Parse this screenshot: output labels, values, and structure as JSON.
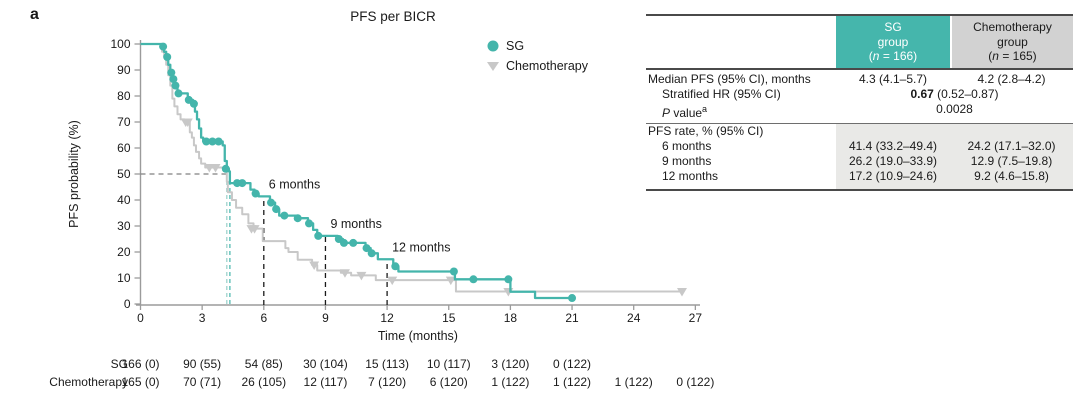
{
  "chart_data": {
    "type": "line",
    "subtype": "kaplan-meier-step",
    "panel": "a",
    "title": "PFS per BICR",
    "xlabel": "Time (months)",
    "ylabel": "PFS probability (%)",
    "xlim": [
      0,
      27
    ],
    "xticks": [
      0,
      3,
      6,
      9,
      12,
      15,
      18,
      21,
      24,
      27
    ],
    "ylim": [
      0,
      100
    ],
    "yticks": [
      0,
      10,
      20,
      30,
      40,
      50,
      60,
      70,
      80,
      90,
      100
    ],
    "grid": false,
    "legend_position": "upper-right-inside",
    "legend": [
      {
        "name": "SG",
        "marker": "circle",
        "color": "#44b5ab"
      },
      {
        "name": "Chemotherapy",
        "marker": "triangle-down",
        "color": "#c8c8c8"
      }
    ],
    "series": [
      {
        "name": "SG",
        "color": "#44b5ab",
        "start": [
          0,
          100
        ],
        "end_month": 21.0,
        "steps": [
          [
            1.05,
            99
          ],
          [
            1.15,
            97
          ],
          [
            1.25,
            95
          ],
          [
            1.35,
            92
          ],
          [
            1.45,
            89
          ],
          [
            1.55,
            86.5
          ],
          [
            1.65,
            84
          ],
          [
            1.8,
            81
          ],
          [
            2.3,
            78.5
          ],
          [
            2.55,
            77
          ],
          [
            2.65,
            74
          ],
          [
            2.75,
            71
          ],
          [
            2.85,
            67.5
          ],
          [
            2.95,
            64
          ],
          [
            3.05,
            62.5
          ],
          [
            4.0,
            61
          ],
          [
            4.1,
            55
          ],
          [
            4.2,
            52
          ],
          [
            4.3,
            51
          ],
          [
            4.35,
            46.5
          ],
          [
            5.35,
            44
          ],
          [
            5.55,
            42.5
          ],
          [
            5.75,
            41.4
          ],
          [
            6.3,
            39
          ],
          [
            6.55,
            36.5
          ],
          [
            6.75,
            34
          ],
          [
            7.6,
            33
          ],
          [
            8.15,
            31
          ],
          [
            8.4,
            28.5
          ],
          [
            8.6,
            26.2
          ],
          [
            9.6,
            25
          ],
          [
            9.85,
            23.5
          ],
          [
            10.95,
            21.5
          ],
          [
            11.2,
            19.5
          ],
          [
            11.55,
            17.2
          ],
          [
            12.3,
            14.5
          ],
          [
            12.55,
            12.5
          ],
          [
            15.3,
            9.5
          ],
          [
            18.0,
            4.7
          ],
          [
            19.2,
            2.3
          ]
        ],
        "censor_marks": [
          [
            1.1,
            99
          ],
          [
            1.3,
            95
          ],
          [
            1.5,
            89
          ],
          [
            1.6,
            86.5
          ],
          [
            1.7,
            84
          ],
          [
            1.85,
            81
          ],
          [
            2.35,
            78.5
          ],
          [
            2.6,
            77
          ],
          [
            3.2,
            62.5
          ],
          [
            3.5,
            62.5
          ],
          [
            3.8,
            62.5
          ],
          [
            4.15,
            52
          ],
          [
            4.7,
            46.5
          ],
          [
            4.95,
            46.5
          ],
          [
            5.6,
            42.5
          ],
          [
            6.35,
            39
          ],
          [
            6.6,
            36.5
          ],
          [
            7.0,
            34
          ],
          [
            7.65,
            33
          ],
          [
            8.2,
            31
          ],
          [
            8.65,
            26.2
          ],
          [
            9.65,
            25
          ],
          [
            9.9,
            23.5
          ],
          [
            10.35,
            23.5
          ],
          [
            11.0,
            21.5
          ],
          [
            11.25,
            19.5
          ],
          [
            12.4,
            14.5
          ],
          [
            15.25,
            12.5
          ],
          [
            16.2,
            9.5
          ],
          [
            17.9,
            9.5
          ],
          [
            21.0,
            2.3
          ]
        ]
      },
      {
        "name": "Chemotherapy",
        "color": "#c8c8c8",
        "start": [
          0,
          100
        ],
        "end_month": 26.35,
        "steps": [
          [
            1.05,
            97
          ],
          [
            1.15,
            95
          ],
          [
            1.25,
            92
          ],
          [
            1.35,
            88
          ],
          [
            1.45,
            84
          ],
          [
            1.55,
            79
          ],
          [
            1.65,
            76
          ],
          [
            1.8,
            73
          ],
          [
            1.95,
            71
          ],
          [
            2.15,
            70
          ],
          [
            2.4,
            66
          ],
          [
            2.5,
            64
          ],
          [
            2.6,
            61
          ],
          [
            2.7,
            58.5
          ],
          [
            2.85,
            56
          ],
          [
            2.95,
            54
          ],
          [
            3.15,
            52.5
          ],
          [
            4.2,
            47
          ],
          [
            4.25,
            43
          ],
          [
            4.45,
            40
          ],
          [
            4.65,
            37
          ],
          [
            4.95,
            34.5
          ],
          [
            5.25,
            31
          ],
          [
            5.5,
            29
          ],
          [
            5.95,
            24.2
          ],
          [
            7.05,
            21.5
          ],
          [
            7.2,
            20
          ],
          [
            7.65,
            17
          ],
          [
            8.35,
            15
          ],
          [
            8.6,
            12.9
          ],
          [
            9.75,
            12
          ],
          [
            10.25,
            11
          ],
          [
            11.45,
            9.2
          ],
          [
            15.35,
            4.8
          ]
        ],
        "censor_marks": [
          [
            2.2,
            70
          ],
          [
            2.3,
            70
          ],
          [
            3.35,
            52.5
          ],
          [
            3.65,
            52.5
          ],
          [
            5.4,
            29
          ],
          [
            5.55,
            29
          ],
          [
            8.45,
            15
          ],
          [
            9.95,
            12
          ],
          [
            10.75,
            11
          ],
          [
            12.25,
            9.2
          ],
          [
            15.1,
            9.2
          ],
          [
            17.9,
            4.8
          ],
          [
            26.35,
            4.8
          ]
        ]
      }
    ],
    "reference_lines": {
      "h50_pct": 50,
      "sg_median_month": 4.35,
      "chemo_median_month": 4.2,
      "month_markers": [
        {
          "month": 6,
          "top_pct": 41.4,
          "label": "6 months"
        },
        {
          "month": 9,
          "top_pct": 26.2,
          "label": "9 months"
        },
        {
          "month": 12,
          "top_pct": 17.2,
          "label": "12 months"
        }
      ]
    },
    "risk_table": {
      "rows": [
        {
          "label": "SG",
          "values": [
            "166 (0)",
            "90 (55)",
            "54 (85)",
            "30 (104)",
            "15 (113)",
            "10 (117)",
            "3 (120)",
            "0 (122)"
          ]
        },
        {
          "label": "Chemotherapy",
          "values": [
            "165 (0)",
            "70 (71)",
            "26 (105)",
            "12 (117)",
            "7 (120)",
            "6 (120)",
            "1 (122)",
            "1 (122)",
            "1 (122)",
            "0 (122)"
          ]
        }
      ]
    }
  },
  "stats": {
    "header": {
      "sg": {
        "l1": "SG",
        "l2": "group",
        "n_open": "(",
        "n": "n",
        "n_close": " = 166)"
      },
      "chemo": {
        "l1": "Chemotherapy",
        "l2": "group",
        "n_open": "(",
        "n": "n",
        "n_close": " = 165)"
      }
    },
    "median": {
      "label": "Median PFS (95% CI), months",
      "sg": "4.3 (4.1–5.7)",
      "chemo": "4.2 (2.8–4.2)"
    },
    "hr": {
      "label": "Stratified HR (95% CI)",
      "bold": "0.67",
      "rest": " (0.52–0.87)"
    },
    "pvalue": {
      "p": "P",
      "label": " value",
      "sup": "a",
      "value": "0.0028"
    },
    "rate": {
      "label": "PFS rate, % (95% CI)",
      "r6": {
        "label": "6 months",
        "sg": "41.4 (33.2–49.4)",
        "chemo": "24.2 (17.1–32.0)"
      },
      "r9": {
        "label": "9 months",
        "sg": "26.2 (19.0–33.9)",
        "chemo": "12.9 (7.5–19.8)"
      },
      "r12": {
        "label": "12 months",
        "sg": "17.2 (10.9–24.6)",
        "chemo": "9.2 (4.6–15.8)"
      }
    }
  }
}
